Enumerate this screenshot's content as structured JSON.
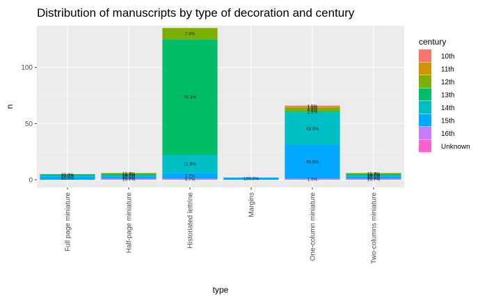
{
  "chart_data": {
    "type": "bar",
    "stacked": true,
    "title": "Distribution of manuscripts by type of decoration and century",
    "xlabel": "type",
    "ylabel": "n",
    "ylim": [
      0,
      137
    ],
    "y_ticks": [
      0,
      50,
      100
    ],
    "grid": true,
    "legend_position": "right",
    "legend_title": "century",
    "categories": [
      "Full page miniature",
      "Half-page miniature",
      "Historiated lettrine",
      "Margins",
      "One-column miniature",
      "Two-columns miniature"
    ],
    "series": [
      {
        "name": "10th",
        "color": "#F8766D",
        "values": [
          0,
          0,
          0,
          0,
          1,
          0
        ],
        "labels": [
          "",
          "",
          "",
          "",
          "1.5%",
          ""
        ]
      },
      {
        "name": "11th",
        "color": "#CD9600",
        "values": [
          0,
          0,
          0,
          0,
          1,
          0
        ],
        "labels": [
          "",
          "",
          "",
          "",
          "1.5%",
          ""
        ]
      },
      {
        "name": "12th",
        "color": "#7CAE00",
        "values": [
          0,
          1,
          10,
          0,
          3,
          1
        ],
        "labels": [
          "",
          "16.7%",
          "7.4%",
          "",
          "4.5%",
          "16.7%"
        ]
      },
      {
        "name": "13th",
        "color": "#00BE67",
        "values": [
          1,
          1,
          103,
          0,
          1,
          1
        ],
        "labels": [
          "20.0%",
          "16.7%",
          "76.3%",
          "",
          "1.5%",
          "16.7%"
        ]
      },
      {
        "name": "14th",
        "color": "#00BFC4",
        "values": [
          1,
          1,
          16,
          0,
          29,
          1
        ],
        "labels": [
          "20.0%",
          "16.7%",
          "11.9%",
          "",
          "43.9%",
          "16.7%"
        ]
      },
      {
        "name": "15th",
        "color": "#00A9FF",
        "values": [
          3,
          2,
          5,
          2,
          30,
          2
        ],
        "labels": [
          "60.0%",
          "33.3%",
          "3.7%",
          "100.0%",
          "45.5%",
          "33.3%"
        ]
      },
      {
        "name": "16th",
        "color": "#C77CFF",
        "values": [
          0,
          1,
          1,
          0,
          1,
          1
        ],
        "labels": [
          "",
          "16.7%",
          "0.7%",
          "",
          "1.5%",
          "16.7%"
        ]
      },
      {
        "name": "Unknown",
        "color": "#FF61CC",
        "values": [
          0,
          0,
          0,
          0,
          0,
          0
        ],
        "labels": [
          "",
          "",
          "",
          "",
          "",
          ""
        ]
      }
    ]
  }
}
